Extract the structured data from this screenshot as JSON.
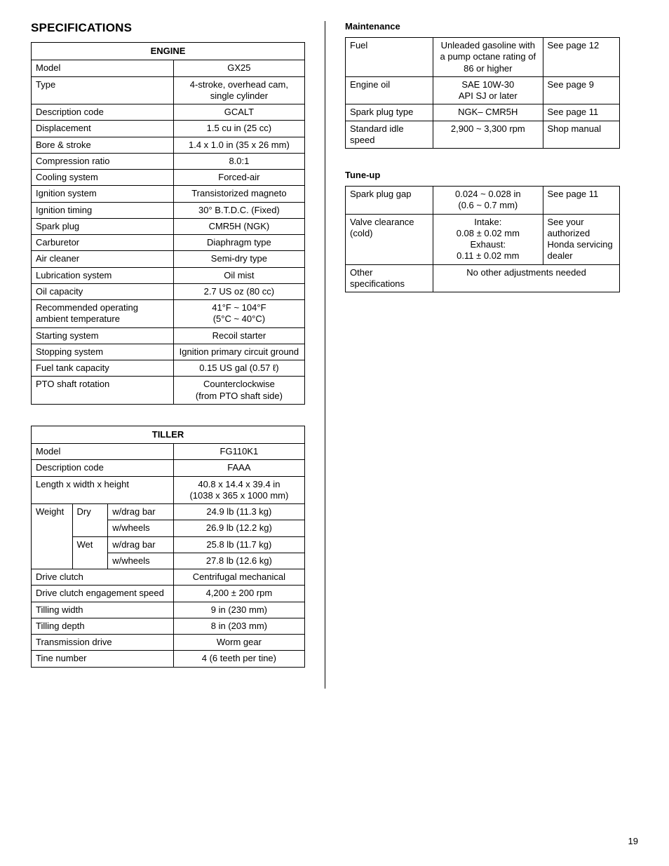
{
  "page_number": "19",
  "headings": {
    "specifications": "SPECIFICATIONS",
    "maintenance": "Maintenance",
    "tuneup": "Tune-up"
  },
  "engine": {
    "caption": "ENGINE",
    "rows": [
      {
        "label": "Model",
        "value": "GX25"
      },
      {
        "label": "Type",
        "value": "4-stroke, overhead cam,\nsingle cylinder"
      },
      {
        "label": "Description code",
        "value": "GCALT"
      },
      {
        "label": "Displacement",
        "value": "1.5 cu in (25 cc)"
      },
      {
        "label": "Bore & stroke",
        "value": "1.4 x 1.0 in (35 x 26 mm)"
      },
      {
        "label": "Compression ratio",
        "value": "8.0:1"
      },
      {
        "label": "Cooling system",
        "value": "Forced-air"
      },
      {
        "label": "Ignition system",
        "value": "Transistorized magneto"
      },
      {
        "label": "Ignition timing",
        "value": "30° B.T.D.C. (Fixed)"
      },
      {
        "label": "Spark plug",
        "value": "CMR5H (NGK)"
      },
      {
        "label": "Carburetor",
        "value": "Diaphragm type"
      },
      {
        "label": "Air cleaner",
        "value": "Semi-dry type"
      },
      {
        "label": "Lubrication system",
        "value": "Oil mist"
      },
      {
        "label": "Oil capacity",
        "value": "2.7 US oz (80 cc)"
      },
      {
        "label": "Recommended operating ambient temperature",
        "value": "41°F ~ 104°F\n(5°C ~ 40°C)"
      },
      {
        "label": "Starting system",
        "value": "Recoil starter"
      },
      {
        "label": "Stopping system",
        "value": "Ignition primary circuit ground"
      },
      {
        "label": "Fuel tank capacity",
        "value": "0.15 US gal (0.57 ℓ)"
      },
      {
        "label": "PTO shaft rotation",
        "value": "Counterclockwise\n(from PTO shaft side)"
      }
    ]
  },
  "tiller": {
    "caption": "TILLER",
    "simple_rows_top": [
      {
        "label": "Model",
        "value": "FG110K1"
      },
      {
        "label": "Description code",
        "value": "FAAA"
      },
      {
        "label": "Length x width x height",
        "value": "40.8 x 14.4 x 39.4 in\n(1038 x 365 x 1000 mm)"
      }
    ],
    "weight": {
      "label": "Weight",
      "groups": [
        {
          "cond": "Dry",
          "subs": [
            {
              "sub": "w/drag bar",
              "value": "24.9 lb (11.3 kg)"
            },
            {
              "sub": "w/wheels",
              "value": "26.9 lb (12.2 kg)"
            }
          ]
        },
        {
          "cond": "Wet",
          "subs": [
            {
              "sub": "w/drag bar",
              "value": "25.8 lb (11.7 kg)"
            },
            {
              "sub": "w/wheels",
              "value": "27.8 lb (12.6 kg)"
            }
          ]
        }
      ]
    },
    "simple_rows_bottom": [
      {
        "label": "Drive clutch",
        "value": "Centrifugal mechanical"
      },
      {
        "label": "Drive clutch engagement speed",
        "value": "4,200 ± 200 rpm"
      },
      {
        "label": "Tilling width",
        "value": "9 in (230 mm)"
      },
      {
        "label": "Tilling depth",
        "value": "8 in (203 mm)"
      },
      {
        "label": "Transmission drive",
        "value": "Worm gear"
      },
      {
        "label": "Tine number",
        "value": "4 (6 teeth per tine)"
      }
    ]
  },
  "maintenance": {
    "rows": [
      {
        "label": "Fuel",
        "value": "Unleaded gasoline with a pump octane rating of 86 or higher",
        "ref": "See page 12"
      },
      {
        "label": "Engine oil",
        "value": "SAE 10W-30\nAPI SJ or later",
        "ref": "See page 9"
      },
      {
        "label": "Spark plug type",
        "value": "NGK– CMR5H",
        "ref": "See page 11"
      },
      {
        "label": "Standard idle speed",
        "value": "2,900 ~ 3,300 rpm",
        "ref": "Shop manual"
      }
    ]
  },
  "tuneup": {
    "rows": [
      {
        "label": "Spark plug gap",
        "value": "0.024 ~ 0.028 in\n(0.6 ~ 0.7 mm)",
        "ref": "See page 11"
      },
      {
        "label": "Valve clearance (cold)",
        "value": "Intake:\n0.08 ± 0.02 mm\nExhaust:\n0.11 ± 0.02 mm",
        "ref": "See your authorized Honda servicing dealer"
      }
    ],
    "other": {
      "label": "Other specifications",
      "value": "No other adjustments needed"
    }
  }
}
